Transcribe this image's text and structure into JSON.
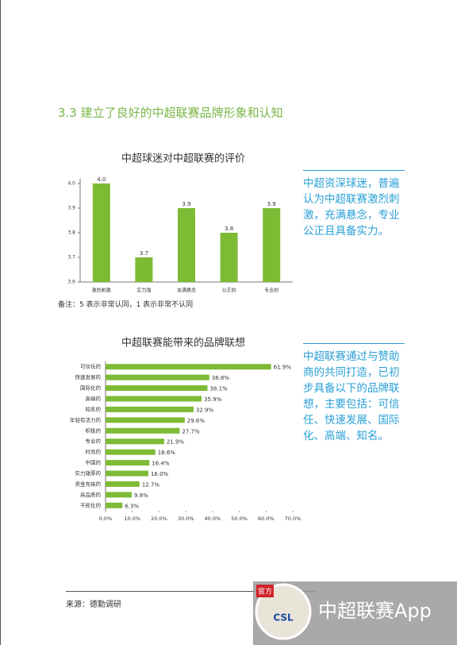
{
  "section_heading": "3.3  建立了良好的中超联赛品牌形象和认知",
  "chart_data": [
    {
      "type": "bar",
      "title": "中超球迷对中超联赛的评价",
      "categories": [
        "激烈刺激",
        "实力强",
        "充满悬念",
        "公正的",
        "专业的"
      ],
      "values": [
        4.0,
        3.7,
        3.9,
        3.8,
        3.9
      ],
      "value_labels": [
        "4.0",
        "3.7",
        "3.9",
        "3.8",
        "3.9"
      ],
      "color": "#7dbb35",
      "ylim": [
        3.6,
        4.0
      ],
      "yticks": [
        3.6,
        3.7,
        3.8,
        3.9,
        {
          "value": 4,
          "label": "4.0"
        }
      ],
      "grid": false
    },
    {
      "type": "bar",
      "orientation": "horizontal",
      "title": "中超联赛能带来的品牌联想",
      "categories": [
        "可信任的",
        "快速发展的",
        "国际化的",
        "高端的",
        "知名的",
        "年轻有活力的",
        "积极的",
        "专业的",
        "时尚的",
        "中国的",
        "实力雄厚的",
        "资金充裕的",
        "高品质的",
        "平民化的"
      ],
      "values": [
        61.9,
        38.8,
        38.1,
        35.9,
        32.9,
        29.6,
        27.7,
        21.9,
        18.6,
        16.4,
        16.0,
        12.7,
        9.8,
        6.3
      ],
      "value_labels": [
        "61.9%",
        "38.8%",
        "38.1%",
        "35.9%",
        "32.9%",
        "29.6%",
        "27.7%",
        "21.9%",
        "18.6%",
        "16.4%",
        "16.0%",
        "12.7%",
        "9.8%",
        "6.3%"
      ],
      "color": "#7dbb35",
      "xlim": [
        0,
        70
      ],
      "xticks": [
        {
          "value": 0,
          "label": "0.0%"
        },
        {
          "value": 10,
          "label": "10.0%"
        },
        {
          "value": 20,
          "label": "20.0%"
        },
        {
          "value": 30,
          "label": "30.0%"
        },
        {
          "value": 40,
          "label": "40.0%"
        },
        {
          "value": 50,
          "label": "50.0%"
        },
        {
          "value": 60,
          "label": "60.0%"
        },
        {
          "value": 70,
          "label": "70.0%"
        }
      ],
      "grid": false
    }
  ],
  "chart_note": "备注：5 表示非常认同，1 表示非常不认同",
  "sidebars": [
    "中超资深球迷，普遍认为中超联赛激烈刺激，充满悬念，专业公正且具备实力。",
    "中超联赛通过与赞助商的共同打造，已初步具备以下的品牌联想，主要包括：可信任、快速发展、国际化、高端、知名。"
  ],
  "footer": {
    "source": "来源：德勤调研"
  },
  "watermark": {
    "badge": "官方",
    "logo": "CSL",
    "app_name": "中超联赛App"
  }
}
